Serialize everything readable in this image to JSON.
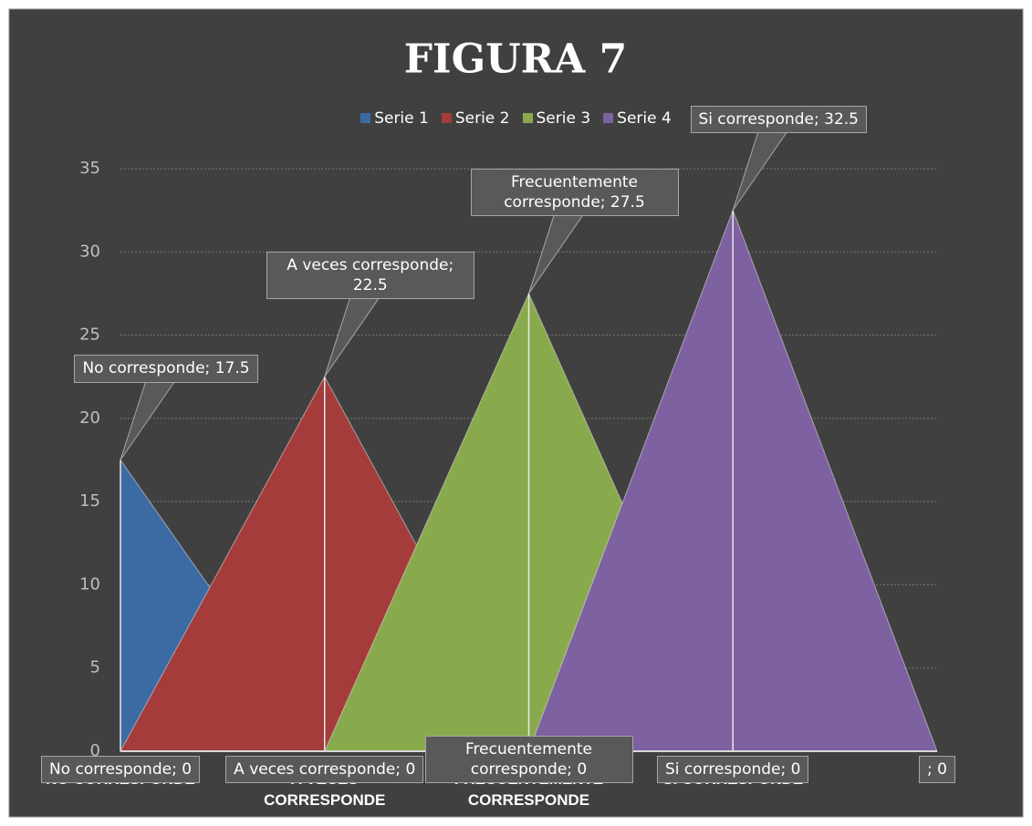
{
  "chart_data": {
    "type": "area",
    "title": "FIGURA 7",
    "categories": [
      "NO CORRESPONDE",
      "A VECES CORRESPONDE",
      "FRECUENTEMENTE CORRESPONDE",
      "SI CORRESPONDE",
      null
    ],
    "series": [
      {
        "name": "Serie 1",
        "color": "#3c6aa3",
        "values": [
          17.5,
          0,
          null,
          null,
          null
        ],
        "value_labels": [
          "No corresponde; 17.5",
          null,
          null,
          null,
          null
        ]
      },
      {
        "name": "Serie 2",
        "color": "#a33c3b",
        "values": [
          0,
          22.5,
          0,
          null,
          null
        ],
        "value_labels": [
          "No corresponde; 0",
          "A veces corresponde; 22.5",
          null,
          null,
          null
        ]
      },
      {
        "name": "Serie 3",
        "color": "#89aa4c",
        "values": [
          null,
          0,
          27.5,
          0,
          null
        ],
        "value_labels": [
          null,
          "A veces corresponde; 0",
          "Frecuentemente corresponde; 27.5",
          "Si corresponde; 0",
          null
        ]
      },
      {
        "name": "Serie 4",
        "color": "#7e61a0",
        "values": [
          null,
          null,
          0,
          32.5,
          0
        ],
        "value_labels": [
          null,
          null,
          "Frecuentemente corresponde; 0",
          "Si corresponde; 32.5",
          "; 0"
        ]
      }
    ],
    "ylim": [
      0,
      35
    ],
    "yticks": [
      0,
      5,
      10,
      15,
      20,
      25,
      30,
      35
    ],
    "grid": true,
    "legend": "top"
  }
}
